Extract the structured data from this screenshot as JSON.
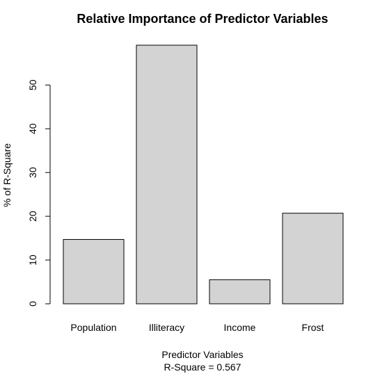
{
  "chart_data": {
    "type": "bar",
    "title": "Relative Importance of Predictor Variables",
    "xlabel": "Predictor Variables",
    "xlabel_subtitle": "R-Square =  0.567",
    "ylabel": "% of R-Square",
    "categories": [
      "Population",
      "Illiteracy",
      "Income",
      "Frost"
    ],
    "values": [
      14.7,
      59.1,
      5.5,
      20.7
    ],
    "ylim": [
      0,
      59.1
    ],
    "yticks": [
      0,
      10,
      20,
      30,
      40,
      50
    ],
    "ytick_labels": [
      "0",
      "10",
      "20",
      "30",
      "40",
      "50"
    ],
    "grid": false,
    "legend": "none",
    "bar_color": "#d3d3d3",
    "bar_border_color": "#000000"
  }
}
